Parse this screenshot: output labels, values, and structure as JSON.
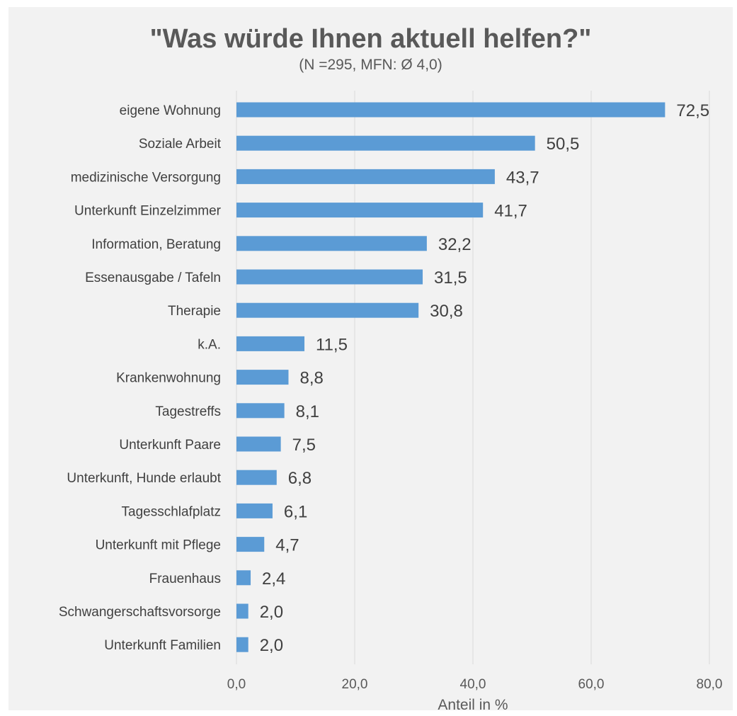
{
  "title": "\"Was würde Ihnen aktuell helfen?\"",
  "subtitle": "(N =295, MFN: Ø 4,0)",
  "colors": {
    "bar": "#5b9bd5",
    "background": "#f2f2f2",
    "grid": "#d9d9d9"
  },
  "chart_data": {
    "type": "bar",
    "orientation": "horizontal",
    "categories": [
      "eigene Wohnung",
      "Soziale Arbeit",
      "medizinische Versorgung",
      "Unterkunft Einzelzimmer",
      "Information, Beratung",
      "Essenausgabe / Tafeln",
      "Therapie",
      "k.A.",
      "Krankenwohnung",
      "Tagestreffs",
      "Unterkunft Paare",
      "Unterkunft, Hunde erlaubt",
      "Tagesschlafplatz",
      "Unterkunft mit Pflege",
      "Frauenhaus",
      "Schwangerschaftsvorsorge",
      "Unterkunft Familien"
    ],
    "values": [
      72.5,
      50.5,
      43.7,
      41.7,
      32.2,
      31.5,
      30.8,
      11.5,
      8.8,
      8.1,
      7.5,
      6.8,
      6.1,
      4.7,
      2.4,
      2.0,
      2.0
    ],
    "value_labels": [
      "72,5",
      "50,5",
      "43,7",
      "41,7",
      "32,2",
      "31,5",
      "30,8",
      "11,5",
      "8,8",
      "8,1",
      "7,5",
      "6,8",
      "6,1",
      "4,7",
      "2,4",
      "2,0",
      "2,0"
    ],
    "xlim": [
      0,
      80
    ],
    "xticks": [
      0,
      20,
      40,
      60,
      80
    ],
    "xtick_labels": [
      "0,0",
      "20,0",
      "40,0",
      "60,0",
      "80,0"
    ],
    "xlabel": "Anteil in %",
    "ylabel": "",
    "grid": "vertical",
    "legend": "none"
  }
}
